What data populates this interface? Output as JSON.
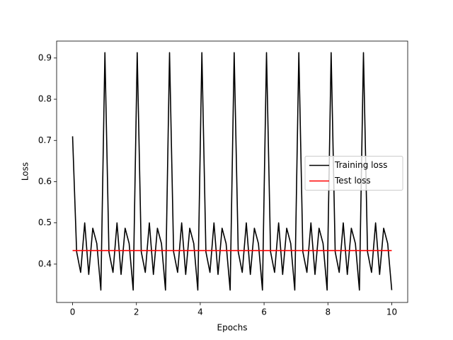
{
  "chart_data": {
    "type": "line",
    "xlabel": "Epochs",
    "ylabel": "Loss",
    "xlim": [
      -0.5,
      10.5
    ],
    "ylim": [
      0.307,
      0.941
    ],
    "xticks": [
      0,
      2,
      4,
      6,
      8,
      10
    ],
    "yticks": [
      0.4,
      0.5,
      0.6,
      0.7,
      0.8,
      0.9
    ],
    "legend": "center right",
    "series": [
      {
        "name": "Training loss",
        "color": "#000000",
        "x": [
          0,
          0.127,
          0.253,
          0.38,
          0.506,
          0.633,
          0.759,
          0.886,
          1.013,
          1.139,
          1.266,
          1.392,
          1.519,
          1.646,
          1.772,
          1.899,
          2.025,
          2.152,
          2.278,
          2.405,
          2.532,
          2.658,
          2.785,
          2.911,
          3.038,
          3.165,
          3.291,
          3.418,
          3.544,
          3.671,
          3.797,
          3.924,
          4.051,
          4.177,
          4.304,
          4.43,
          4.557,
          4.684,
          4.81,
          4.937,
          5.063,
          5.19,
          5.316,
          5.443,
          5.57,
          5.696,
          5.823,
          5.949,
          6.076,
          6.203,
          6.329,
          6.456,
          6.582,
          6.709,
          6.835,
          6.962,
          7.089,
          7.215,
          7.342,
          7.468,
          7.595,
          7.722,
          7.848,
          7.975,
          8.101,
          8.228,
          8.354,
          8.481,
          8.608,
          8.734,
          8.861,
          8.987,
          9.114,
          9.241,
          9.367,
          9.494,
          9.62,
          9.747,
          9.873,
          10.0
        ],
        "values": [
          0.71,
          0.43,
          0.38,
          0.5,
          0.375,
          0.487,
          0.45,
          0.337,
          0.913,
          0.43,
          0.38,
          0.5,
          0.375,
          0.487,
          0.45,
          0.337,
          0.913,
          0.43,
          0.38,
          0.5,
          0.375,
          0.487,
          0.45,
          0.337,
          0.913,
          0.43,
          0.38,
          0.5,
          0.375,
          0.487,
          0.45,
          0.337,
          0.913,
          0.43,
          0.38,
          0.5,
          0.375,
          0.487,
          0.45,
          0.337,
          0.913,
          0.43,
          0.38,
          0.5,
          0.375,
          0.487,
          0.45,
          0.337,
          0.913,
          0.43,
          0.38,
          0.5,
          0.375,
          0.487,
          0.45,
          0.337,
          0.913,
          0.43,
          0.38,
          0.5,
          0.375,
          0.487,
          0.45,
          0.337,
          0.913,
          0.43,
          0.38,
          0.5,
          0.375,
          0.487,
          0.45,
          0.337,
          0.913,
          0.43,
          0.38,
          0.5,
          0.375,
          0.487,
          0.45,
          0.337
        ]
      },
      {
        "name": "Test loss",
        "color": "#ff0000",
        "x": [
          0,
          10
        ],
        "values": [
          0.433,
          0.433
        ]
      }
    ]
  }
}
